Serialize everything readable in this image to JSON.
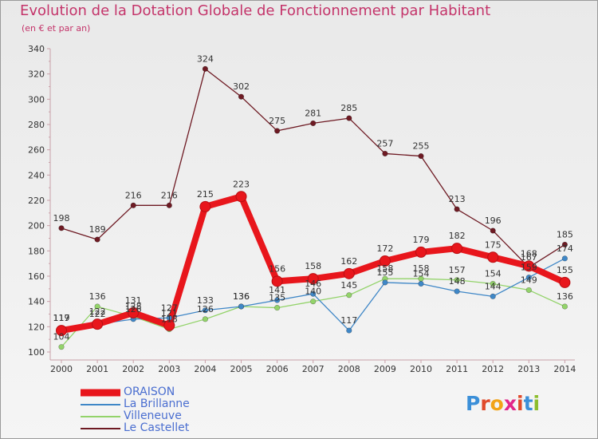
{
  "title": "Evolution de la Dotation Globale de Fonctionnement par Habitant",
  "subtitle": "(en € et par an)",
  "logo": {
    "text": "Proxiti",
    "letters": [
      "P",
      "r",
      "o",
      "x",
      "i",
      "t",
      "i"
    ],
    "colors": [
      "#3b8fd8",
      "#e04a2b",
      "#f2a318",
      "#e2268a",
      "#e04a2b",
      "#3b8fd8",
      "#8cbd2c"
    ]
  },
  "chart_data": {
    "type": "line",
    "title": "Evolution de la Dotation Globale de Fonctionnement par Habitant",
    "subtitle": "(en € et par an)",
    "x": [
      "2000",
      "2001",
      "2002",
      "2003",
      "2004",
      "2005",
      "2006",
      "2007",
      "2008",
      "2009",
      "2010",
      "2011",
      "2012",
      "2013",
      "2014"
    ],
    "ylim": [
      100,
      340
    ],
    "yticks": [
      "100",
      "120",
      "140",
      "160",
      "180",
      "200",
      "220",
      "240",
      "260",
      "280",
      "300",
      "320",
      "340"
    ],
    "grid": false,
    "legend_position": "bottom-left",
    "series": [
      {
        "name": "ORAISON",
        "color": "#e8161c",
        "values": [
          117,
          122,
          131,
          121,
          215,
          223,
          156,
          158,
          162,
          172,
          179,
          182,
          175,
          168,
          155
        ]
      },
      {
        "name": "La Brillanne",
        "color": "#3f87c7",
        "values": [
          119,
          122,
          126,
          127,
          133,
          136,
          141,
          146,
          117,
          155,
          154,
          148,
          144,
          159,
          174
        ]
      },
      {
        "name": "Villeneuve",
        "color": "#93d36a",
        "values": [
          104,
          136,
          128,
          118,
          126,
          136,
          135,
          140,
          145,
          158,
          158,
          157,
          154,
          149,
          136
        ]
      },
      {
        "name": "Le Castellet",
        "color": "#6e1a23",
        "values": [
          198,
          189,
          216,
          216,
          324,
          302,
          275,
          281,
          285,
          257,
          255,
          213,
          196,
          167,
          185
        ]
      }
    ]
  }
}
